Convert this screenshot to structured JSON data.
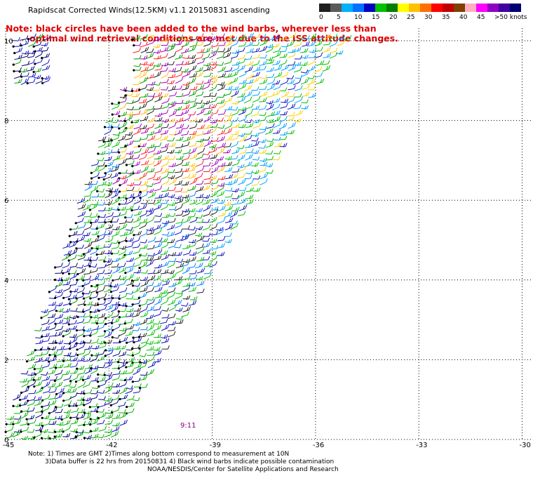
{
  "title": "Rapidscat Corrected Winds(12.5KM) v1.1 20150831 ascending",
  "note_line1": "Note: black circles have been added to the wind barbs, wherever less than",
  "note_line2": "optimal wind retrieval conditions are met due to the ISS attitude changes.",
  "legend": {
    "colors": [
      "#202020",
      "#5a5a5a",
      "#00b0ff",
      "#0070ff",
      "#0000c0",
      "#00c000",
      "#008000",
      "#ffff00",
      "#ffc000",
      "#ff7000",
      "#ff0000",
      "#c00000",
      "#804000",
      "#ffb0c0",
      "#ff00ff",
      "#9000c0",
      "#4000a0",
      "#000070"
    ],
    "labels": [
      "0",
      "5",
      "10",
      "15",
      "20",
      "25",
      "30",
      "35",
      "40",
      "45",
      ">50 knots"
    ]
  },
  "map": {
    "x_ticks": [
      "-45",
      "-42",
      "-39",
      "-36",
      "-33",
      "-30"
    ],
    "y_ticks": [
      "0",
      "2",
      "4",
      "6",
      "8",
      "10"
    ],
    "time_labels": [
      "9:11"
    ]
  },
  "footer": {
    "line1": "Note: 1) Times are GMT 2)Times along bottom correspond to measurement at 10N",
    "line2": "3)Data buffer is 22 hrs from 20150831 4) Black wind barbs indicate possible contamination",
    "line3": "NOAA/NESDIS/Center for Satellite Applications and Research"
  }
}
